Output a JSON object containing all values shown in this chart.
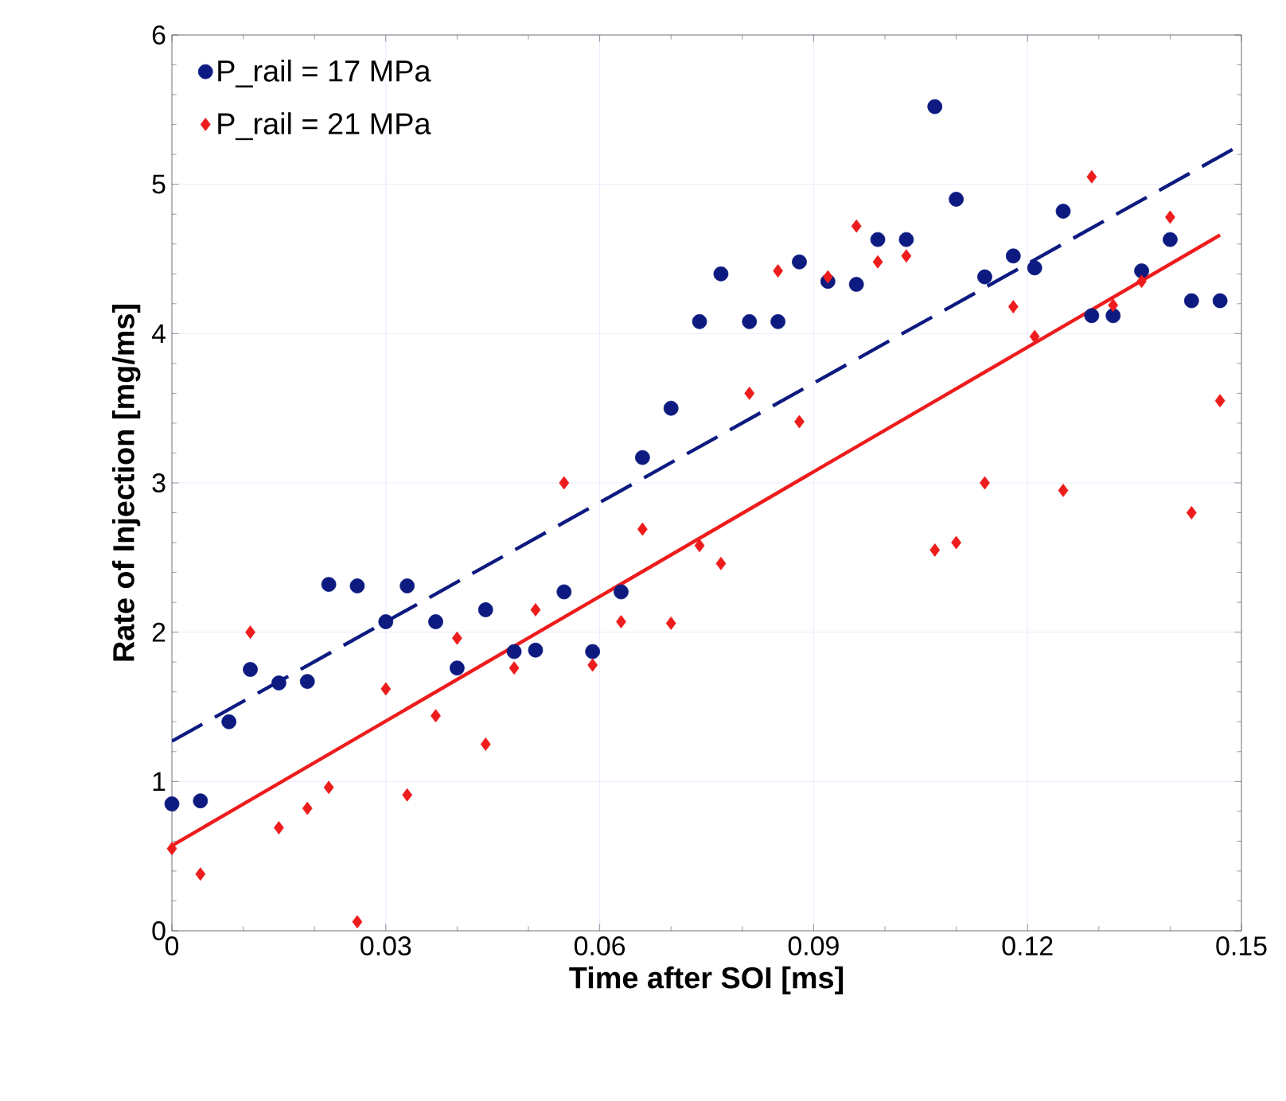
{
  "chart_data": {
    "type": "scatter",
    "xlabel": "Time after SOI [ms]",
    "ylabel": "Rate of Injection [mg/ms]",
    "xlim": [
      0,
      0.15
    ],
    "ylim": [
      0,
      6
    ],
    "xticks": [
      0,
      0.03,
      0.06,
      0.09,
      0.12,
      0.15
    ],
    "yticks": [
      0,
      1,
      2,
      3,
      4,
      5,
      6
    ],
    "grid": true,
    "legend": "top left",
    "series": [
      {
        "name": "P_rail = 17 MPa",
        "color": "#0d1a80",
        "marker": "circle",
        "x": [
          0,
          0.004,
          0.008,
          0.011,
          0.015,
          0.019,
          0.022,
          0.026,
          0.03,
          0.033,
          0.037,
          0.04,
          0.044,
          0.048,
          0.051,
          0.055,
          0.059,
          0.063,
          0.066,
          0.07,
          0.074,
          0.077,
          0.081,
          0.085,
          0.088,
          0.092,
          0.096,
          0.099,
          0.103,
          0.107,
          0.11,
          0.114,
          0.118,
          0.121,
          0.125,
          0.129,
          0.132,
          0.136,
          0.14,
          0.143,
          0.147
        ],
        "values": [
          0.85,
          0.87,
          1.4,
          1.75,
          1.66,
          1.67,
          2.32,
          2.31,
          2.07,
          2.31,
          2.07,
          1.76,
          2.15,
          1.87,
          1.88,
          2.27,
          1.87,
          2.27,
          3.17,
          3.5,
          4.08,
          4.4,
          4.08,
          4.08,
          4.48,
          4.35,
          4.33,
          4.63,
          4.63,
          5.52,
          4.9,
          4.38,
          4.52,
          4.44,
          4.82,
          4.12,
          4.12,
          4.42,
          4.63,
          4.22,
          4.22
        ]
      },
      {
        "name": "P_rail = 21 MPa",
        "color": "#ee1c1c",
        "marker": "diamond",
        "x": [
          0,
          0.004,
          0.011,
          0.015,
          0.019,
          0.022,
          0.026,
          0.03,
          0.033,
          0.037,
          0.04,
          0.044,
          0.048,
          0.051,
          0.055,
          0.059,
          0.063,
          0.066,
          0.07,
          0.074,
          0.077,
          0.081,
          0.085,
          0.088,
          0.092,
          0.096,
          0.099,
          0.103,
          0.107,
          0.11,
          0.114,
          0.118,
          0.121,
          0.125,
          0.129,
          0.132,
          0.136,
          0.14,
          0.143,
          0.147
        ],
        "values": [
          0.55,
          0.38,
          2.0,
          0.69,
          0.82,
          0.96,
          0.06,
          1.62,
          0.91,
          1.44,
          1.96,
          1.25,
          1.76,
          2.15,
          3.0,
          1.78,
          2.07,
          2.69,
          2.06,
          2.58,
          2.46,
          3.6,
          4.42,
          3.41,
          4.38,
          4.72,
          4.48,
          4.52,
          2.55,
          2.6,
          3.0,
          4.18,
          3.98,
          2.95,
          5.05,
          4.19,
          4.35,
          4.78,
          2.8,
          3.55
        ]
      },
      {
        "type": "line",
        "color": "#0d1a80",
        "line_style": "dashed",
        "x": [
          0,
          0.149
        ],
        "values": [
          1.27,
          5.24
        ]
      },
      {
        "type": "line",
        "color": "#ee1c1c",
        "line_style": "solid",
        "x": [
          0,
          0.147
        ],
        "values": [
          0.57,
          4.66
        ]
      }
    ]
  }
}
